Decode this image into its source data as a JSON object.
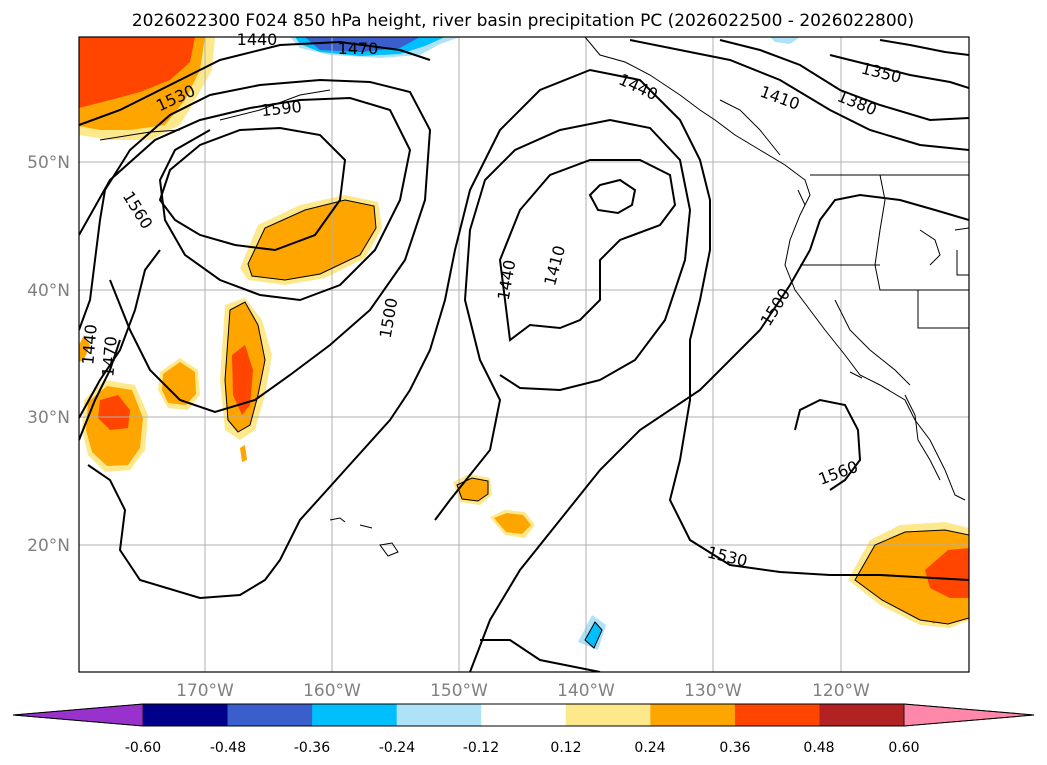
{
  "title": "2026022300 F024 850 hPa height, river basin precipitation PC (2026022500 - 2026022800)",
  "lat_labels": [
    "50°N",
    "40°N",
    "30°N",
    "20°N"
  ],
  "lon_labels": [
    "170°W",
    "160°W",
    "150°W",
    "140°W",
    "130°W",
    "120°W"
  ],
  "contour_labels": [
    "1440",
    "1470",
    "1530",
    "1590",
    "1560",
    "1440",
    "1470",
    "1500",
    "1440",
    "1410",
    "1440",
    "1410",
    "1380",
    "1350",
    "1500",
    "1560",
    "1530"
  ],
  "colorbar": {
    "ticks": [
      "-0.60",
      "-0.48",
      "-0.36",
      "-0.24",
      "-0.12",
      "0.12",
      "0.24",
      "0.36",
      "0.48",
      "0.60"
    ],
    "colors": [
      "#9932cc",
      "#00008b",
      "#3a5fcd",
      "#00bfff",
      "#aee2f7",
      "#ffffff",
      "#fde98b",
      "#ffa500",
      "#ff4500",
      "#b22222",
      "#ff88aa"
    ]
  }
}
